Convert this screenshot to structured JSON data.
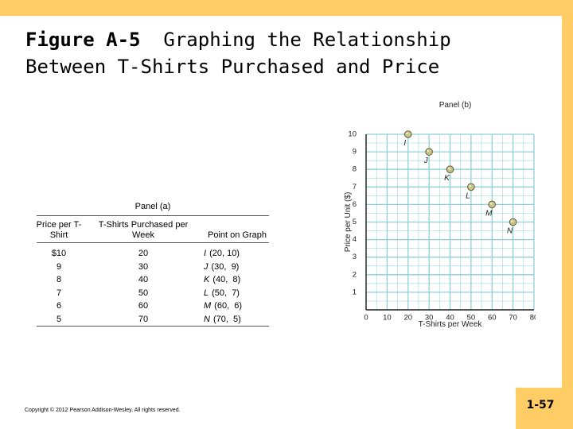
{
  "slide": {
    "title_bold": "Figure A-5",
    "title_rest": "Graphing the Relationship",
    "title_line2": "Between T-Shirts Purchased and Price",
    "copyright": "Copyright © 2012 Pearson Addison-Wesley. All rights reserved.",
    "page_number": "1-57",
    "accent_color": "#FFCC66"
  },
  "table": {
    "panel_label": "Panel (a)",
    "headers": [
      "Price per T-Shirt",
      "T-Shirts Purchased per Week",
      "Point on Graph"
    ],
    "rows": [
      {
        "price": "$10",
        "quantity": "20",
        "point": "I",
        "coords": "(20, 10)"
      },
      {
        "price": "9",
        "quantity": "30",
        "point": "J",
        "coords": "(30,  9)"
      },
      {
        "price": "8",
        "quantity": "40",
        "point": "K",
        "coords": "(40,  8)"
      },
      {
        "price": "7",
        "quantity": "50",
        "point": "L",
        "coords": "(50,  7)"
      },
      {
        "price": "6",
        "quantity": "60",
        "point": "M",
        "coords": "(60,  6)"
      },
      {
        "price": "5",
        "quantity": "70",
        "point": "N",
        "coords": "(70,  5)"
      }
    ]
  },
  "chart_data": {
    "type": "scatter",
    "title": "Panel (b)",
    "xlabel": "T-Shirts per Week",
    "ylabel": "Price per Unit ($)",
    "xlim": [
      0,
      80
    ],
    "ylim": [
      0,
      10
    ],
    "x_ticks": [
      0,
      10,
      20,
      30,
      40,
      50,
      60,
      70,
      80
    ],
    "y_ticks": [
      1,
      2,
      3,
      4,
      5,
      6,
      7,
      8,
      9,
      10
    ],
    "grid": true,
    "grid_color": "#8fd0d8",
    "point_color": "#c8c68a",
    "points": [
      {
        "label": "I",
        "x": 20,
        "y": 10
      },
      {
        "label": "J",
        "x": 30,
        "y": 9
      },
      {
        "label": "K",
        "x": 40,
        "y": 8
      },
      {
        "label": "L",
        "x": 50,
        "y": 7
      },
      {
        "label": "M",
        "x": 60,
        "y": 6
      },
      {
        "label": "N",
        "x": 70,
        "y": 5
      }
    ]
  }
}
